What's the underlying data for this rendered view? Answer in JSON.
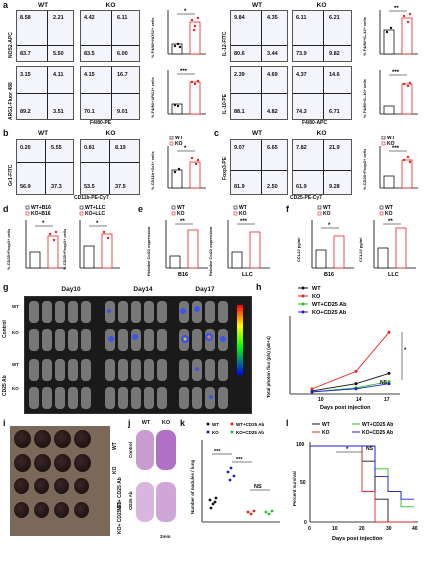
{
  "panels": {
    "a": {
      "label": "a",
      "wt_title": "WT",
      "ko_title": "KO",
      "row1": {
        "ylabel": "NOS2-APC",
        "xlabel": "F4/80-PE",
        "wt_q": [
          "8.58",
          "2.21",
          "83.7",
          "5.50"
        ],
        "ko_q": [
          "4.42",
          "6.11",
          "83.5",
          "6.00"
        ],
        "bar_ylabel": "% F4/80+NOS2+ cells",
        "sig": "*"
      },
      "row2": {
        "ylabel": "ARG1-Fluor 488",
        "xlabel": "F4/80-PE",
        "wt_q": [
          "3.15",
          "4.11",
          "89.2",
          "3.51"
        ],
        "ko_q": [
          "4.15",
          "16.7",
          "70.1",
          "9.01"
        ],
        "bar_ylabel": "% F4/80+ARG1+ cells",
        "sig": "***"
      },
      "row3": {
        "ylabel": "IL-12-FITC",
        "xlabel": "F4/80-APC",
        "wt_q": [
          "9.84",
          "4.35",
          "80.6",
          "3.44"
        ],
        "ko_q": [
          "6.11",
          "6.21",
          "73.9",
          "9.82"
        ],
        "bar_ylabel": "% F4/80+IL-12+ cells",
        "sig": "**"
      },
      "row4": {
        "ylabel": "IL-10-PE",
        "xlabel": "F4/80-APC",
        "wt_q": [
          "2.39",
          "4.69",
          "88.1",
          "4.82"
        ],
        "ko_q": [
          "4.37",
          "14.6",
          "74.3",
          "6.71"
        ],
        "bar_ylabel": "% F4/80+IL-10+ cells",
        "sig": "***"
      }
    },
    "b": {
      "label": "b",
      "wt_title": "WT",
      "ko_title": "KO",
      "ylabel": "Gr1-FITC",
      "xlabel": "CD11b-PE-Cy7",
      "wt_q": [
        "0.20",
        "5.55",
        "56.9",
        "37.3"
      ],
      "ko_q": [
        "0.81",
        "8.19",
        "53.5",
        "37.5"
      ],
      "bar_ylabel": "% CD11b+Gr1+ cells",
      "sig": "*"
    },
    "c": {
      "label": "c",
      "wt_title": "WT",
      "ko_title": "KO",
      "ylabel": "Foxp3-PE",
      "xlabel": "CD25-PE-Cy7",
      "wt_q": [
        "9.07",
        "6.65",
        "81.9",
        "2.50"
      ],
      "ko_q": [
        "7.82",
        "21.9",
        "61.9",
        "9.28"
      ],
      "bar_ylabel": "% CD25+Foxp3+ cells",
      "sig": "***"
    },
    "d": {
      "label": "d",
      "legend1": [
        "WT+B16",
        "KO+B16"
      ],
      "legend2": [
        "WT+LLC",
        "KO+LLC"
      ],
      "ylabel": "% CD25+Foxp3+ cells",
      "sig1": "*",
      "sig2": "*"
    },
    "e": {
      "label": "e",
      "legend": [
        "WT",
        "KO"
      ],
      "ylabel1": "Relative Ccl22 expression",
      "ylabel2": "Relative Ccl22 expression",
      "x1": "B16",
      "x2": "LLC",
      "sig1": "**",
      "sig2": "***"
    },
    "f": {
      "label": "f",
      "legend": [
        "WT",
        "KO"
      ],
      "ylabel1": "CCL22 pg/ml",
      "ylabel2": "CCL22 pg/ml",
      "x1": "B16",
      "x2": "LLC",
      "sig1": "*",
      "sig2": "**"
    },
    "g": {
      "label": "g",
      "days": [
        "Day10",
        "Day14",
        "Day17"
      ],
      "rows": [
        "WT",
        "KO",
        "WT",
        "KO"
      ],
      "groups": [
        "Control",
        "CD25 Ab"
      ]
    },
    "h": {
      "label": "h",
      "legend": [
        "WT",
        "KO",
        "WT+CD25 Ab",
        "KO+CD25 Ab"
      ],
      "ylabel": "Total photon flux (p/s) (xE+4)",
      "xlabel": "Days post injection",
      "xticks": [
        "10",
        "14",
        "17"
      ],
      "sig": "*",
      "ns": "NS"
    },
    "i": {
      "label": "i",
      "rows": [
        "WT",
        "KO",
        "WT+ CD25 Ab",
        "KO+ CD25 Ab"
      ]
    },
    "j": {
      "label": "j",
      "wt": "WT",
      "ko": "KO",
      "row1": "Control",
      "row2": "CD25 Ab",
      "scale": "2mm"
    },
    "k": {
      "label": "k",
      "legend": [
        "WT",
        "KO",
        "WT+CD25 Ab",
        "KO+CD25 Ab"
      ],
      "ylabel": "Number of nodules / lung",
      "sig1": "***",
      "sig2": "***",
      "ns": "NS"
    },
    "l": {
      "label": "l",
      "legend": [
        "WT",
        "KO",
        "WT+CD25 Ab",
        "KO+CD25 Ab"
      ],
      "ylabel": "Percent survival",
      "xlabel": "Days post injection",
      "sig": "*",
      "ns": "NS",
      "xticks": [
        "0",
        "10",
        "20",
        "30",
        "40"
      ],
      "yticks": [
        "0",
        "50",
        "100"
      ]
    }
  },
  "colors": {
    "wt": "#111111",
    "ko": "#e8231f",
    "wt_ab": "#22c21e",
    "ko_ab": "#1a1adf"
  },
  "chart_data": [
    {
      "type": "line",
      "x": [
        10,
        14,
        17
      ],
      "series": [
        {
          "name": "WT",
          "values": [
            0.3,
            1.0,
            2.0
          ]
        },
        {
          "name": "KO",
          "values": [
            0.5,
            2.2,
            6.0
          ]
        },
        {
          "name": "WT+CD25 Ab",
          "values": [
            0.2,
            0.6,
            1.2
          ]
        },
        {
          "name": "KO+CD25 Ab",
          "values": [
            0.2,
            0.5,
            1.0
          ]
        }
      ],
      "xlabel": "Days post injection",
      "ylabel": "Total photon flux (p/s) (xE+4)"
    },
    {
      "type": "line",
      "x": [
        0,
        10,
        20,
        25,
        30,
        35,
        40
      ],
      "series": [
        {
          "name": "WT",
          "values": [
            100,
            100,
            80,
            30,
            0,
            0,
            0
          ]
        },
        {
          "name": "KO",
          "values": [
            100,
            100,
            40,
            0,
            0,
            0,
            0
          ]
        },
        {
          "name": "WT+CD25 Ab",
          "values": [
            100,
            100,
            100,
            70,
            40,
            20,
            20
          ]
        },
        {
          "name": "KO+CD25 Ab",
          "values": [
            100,
            100,
            100,
            60,
            40,
            30,
            30
          ]
        }
      ],
      "xlabel": "Days post injection",
      "ylabel": "Percent survival"
    }
  ]
}
